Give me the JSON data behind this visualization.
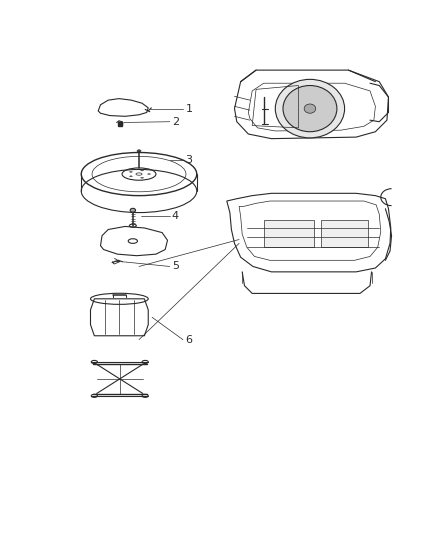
{
  "background_color": "#ffffff",
  "line_color": "#2a2a2a",
  "figsize": [
    4.38,
    5.33
  ],
  "dpi": 100,
  "parts": {
    "1_label": "1",
    "2_label": "2",
    "3_label": "3",
    "4_label": "4",
    "5_label": "5",
    "6_label": "6"
  }
}
